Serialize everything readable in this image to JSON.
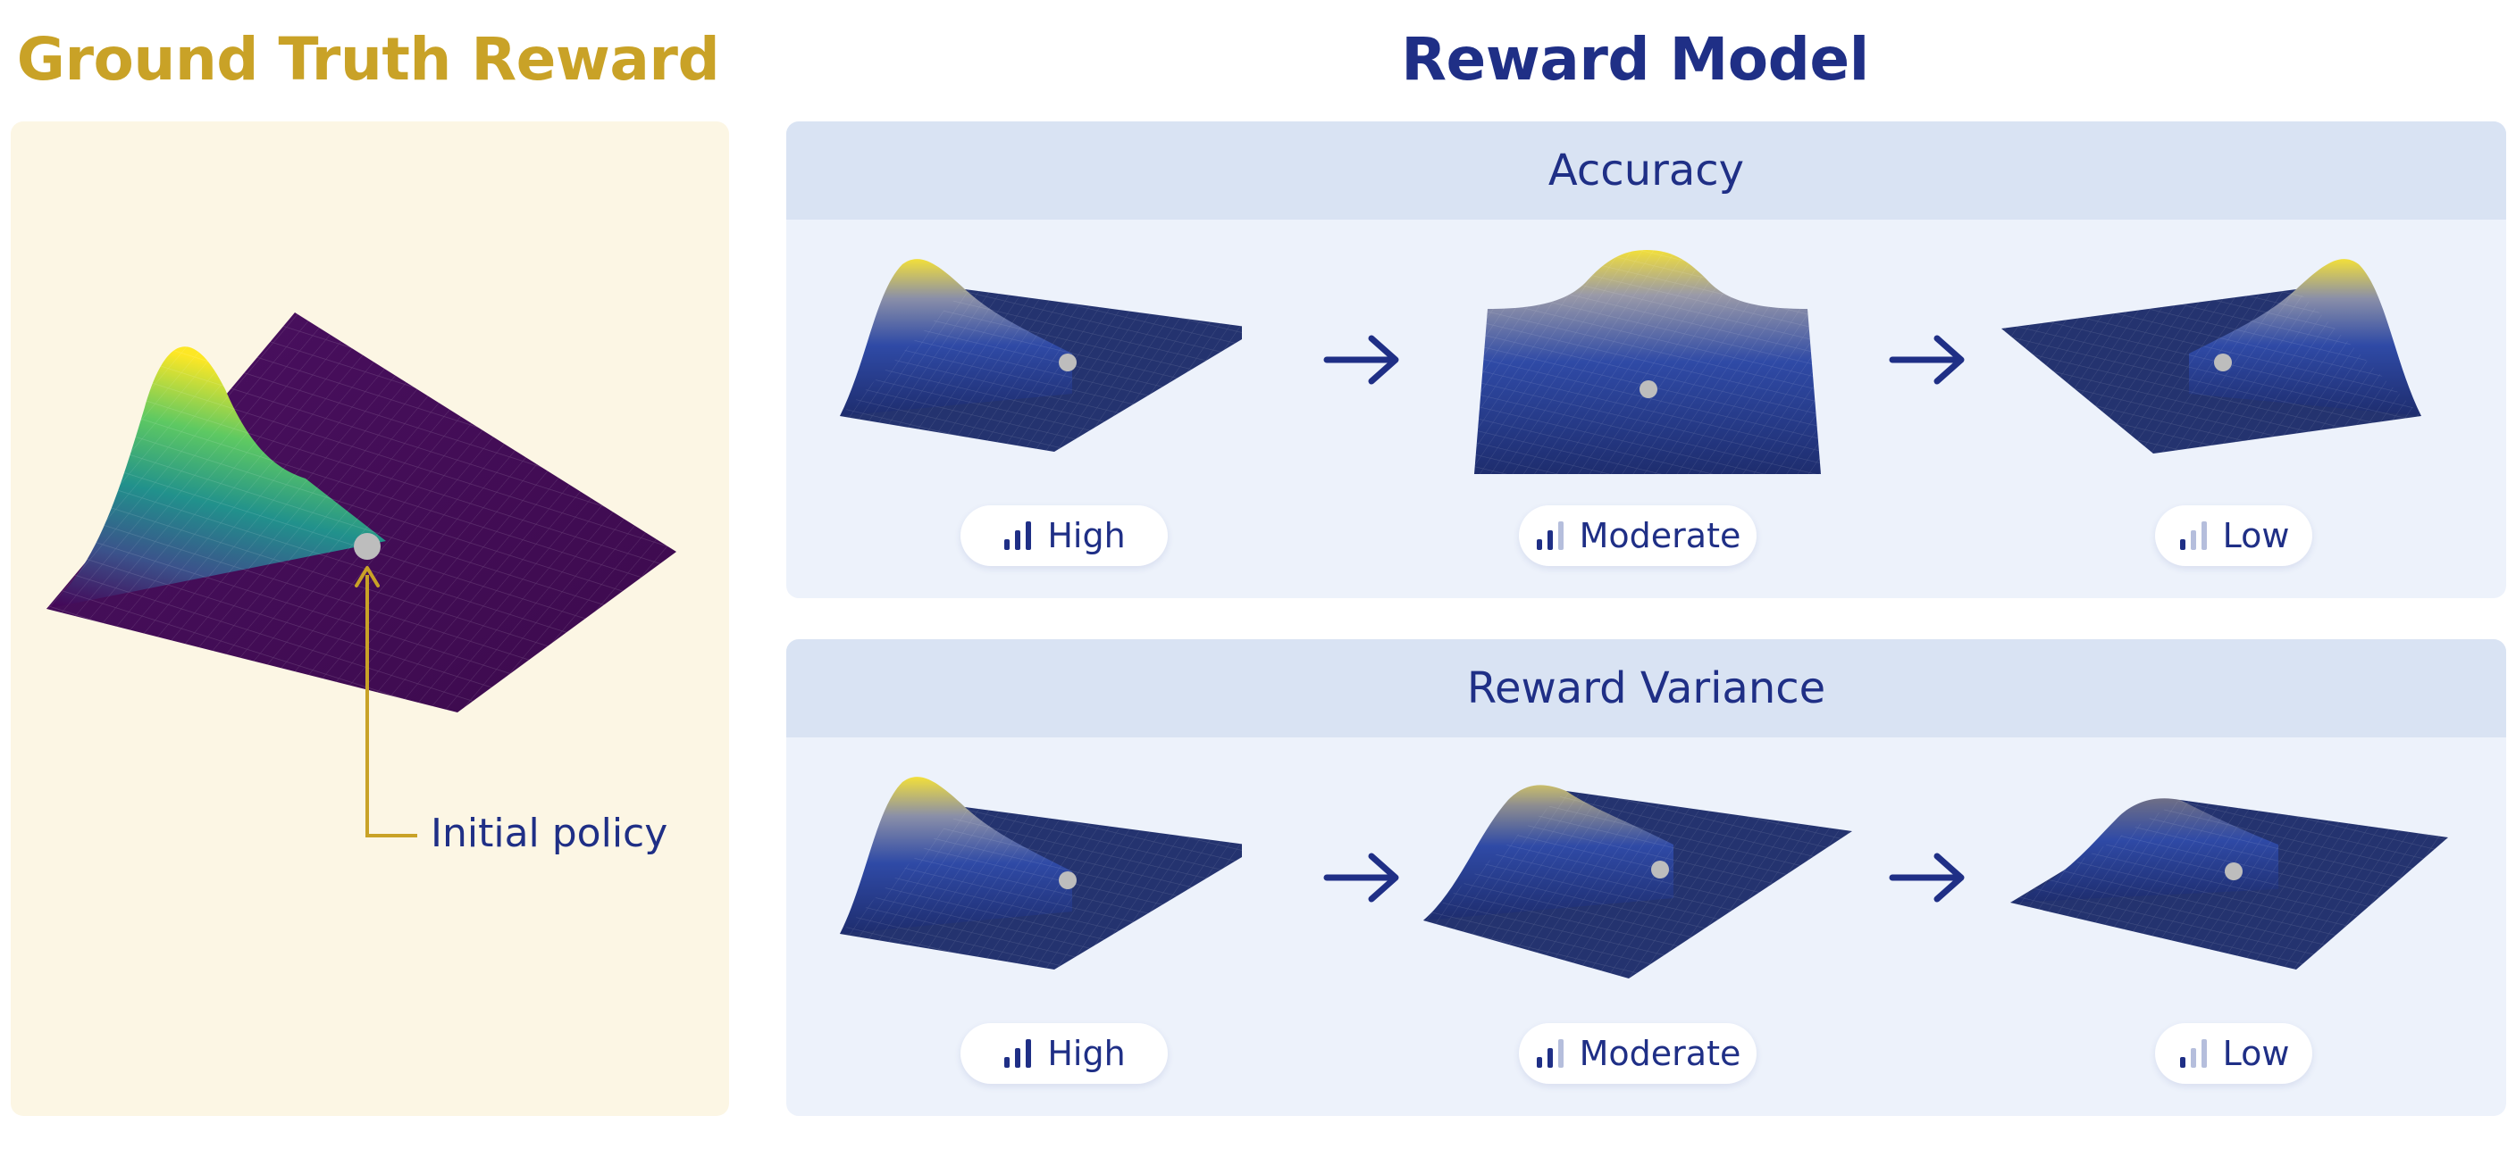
{
  "ground_truth": {
    "title": "Ground Truth Reward",
    "annotation": "Initial policy"
  },
  "reward_model": {
    "title": "Reward Model",
    "rows": [
      {
        "header": "Accuracy",
        "levels": [
          {
            "label": "High",
            "bars_active": 3
          },
          {
            "label": "Moderate",
            "bars_active": 2
          },
          {
            "label": "Low",
            "bars_active": 1
          }
        ]
      },
      {
        "header": "Reward Variance",
        "levels": [
          {
            "label": "High",
            "bars_active": 3
          },
          {
            "label": "Moderate",
            "bars_active": 2
          },
          {
            "label": "Low",
            "bars_active": 1
          }
        ]
      }
    ]
  },
  "colors": {
    "gold": "#c9a227",
    "navy": "#1f2f86",
    "panel_cream": "#fcf6e4",
    "panel_blue": "#edf2fb",
    "panel_head": "#d9e3f3",
    "bar_inactive": "#b5bedc"
  }
}
